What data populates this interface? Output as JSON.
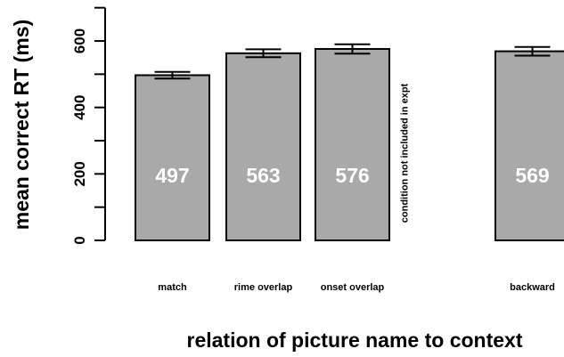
{
  "chart_data": {
    "type": "bar",
    "xlabel": "relation of picture name to context",
    "ylabel": "mean correct RT (ms)",
    "ylim": [
      0,
      700
    ],
    "yticks": [
      0,
      200,
      400,
      600
    ],
    "grid": false,
    "categories": [
      "match",
      "rime overlap",
      "onset overlap",
      "",
      "backward"
    ],
    "values": [
      497,
      563,
      576,
      null,
      569
    ],
    "value_labels": [
      "497",
      "563",
      "576",
      "",
      "569"
    ],
    "error": [
      10,
      12,
      14,
      null,
      13
    ],
    "annotations": [
      {
        "category_index": 3,
        "text": "condition not included in expt"
      }
    ],
    "colors": {
      "bar": "#a9a9a9",
      "value_label": "#ffffff"
    }
  }
}
